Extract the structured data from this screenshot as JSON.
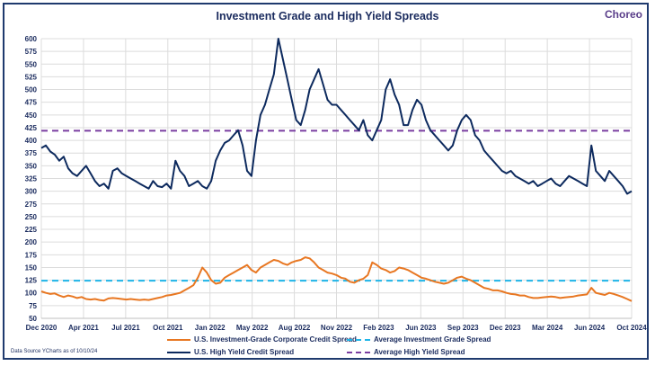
{
  "title": "Investment Grade and High Yield Spreads",
  "logo": "Choreo",
  "source": "Data Source YCharts as of 10/10/24",
  "colors": {
    "ig": "#e87722",
    "hy": "#0d2a5e",
    "ig_avg": "#1fb5e8",
    "hy_avg": "#7a3ea1",
    "grid": "#dcdcdc",
    "text": "#1a2b5e"
  },
  "legend": {
    "ig": "U.S. Investment-Grade Corporate Credit Spread",
    "hy": "U.S. High Yield Credit Spread",
    "ig_avg": "Average Investment Grade Spread",
    "hy_avg": "Average High Yield Spread"
  },
  "chart_data": {
    "type": "line",
    "title": "Investment Grade and High Yield Spreads",
    "xlabel": "",
    "ylabel": "",
    "ylim": [
      50,
      600
    ],
    "yticks": [
      "50",
      "75",
      "100",
      "125",
      "150",
      "175",
      "200",
      "225",
      "250",
      "275",
      "300",
      "325",
      "350",
      "375",
      "400",
      "425",
      "450",
      "475",
      "500",
      "525",
      "550",
      "575",
      "600"
    ],
    "xticks": [
      "Dec 2020",
      "Apr 2021",
      "Jul 2021",
      "Oct 2021",
      "Jan 2022",
      "May 2022",
      "Aug 2022",
      "Nov 2022",
      "Feb 2023",
      "Jun 2023",
      "Sep 2023",
      "Dec 2023",
      "Mar 2024",
      "Jun 2024",
      "Oct 2024"
    ],
    "grid": true,
    "legend_position": "bottom",
    "series": [
      {
        "name": "U.S. High Yield Credit Spread",
        "values": [
          385,
          390,
          378,
          372,
          360,
          368,
          345,
          335,
          330,
          340,
          350,
          335,
          320,
          310,
          315,
          305,
          340,
          345,
          335,
          330,
          325,
          320,
          315,
          310,
          305,
          320,
          310,
          308,
          315,
          305,
          360,
          340,
          330,
          310,
          315,
          320,
          310,
          305,
          320,
          360,
          380,
          395,
          400,
          410,
          420,
          390,
          340,
          330,
          400,
          450,
          470,
          500,
          530,
          600,
          560,
          520,
          480,
          440,
          430,
          460,
          500,
          520,
          540,
          510,
          480,
          470,
          470,
          460,
          450,
          440,
          430,
          420,
          440,
          410,
          400,
          420,
          440,
          500,
          520,
          490,
          470,
          430,
          430,
          460,
          480,
          470,
          440,
          420,
          410,
          400,
          390,
          380,
          390,
          420,
          440,
          450,
          440,
          410,
          400,
          380,
          370,
          360,
          350,
          340,
          335,
          340,
          330,
          325,
          320,
          315,
          320,
          310,
          315,
          320,
          325,
          315,
          310,
          320,
          330,
          325,
          320,
          315,
          310,
          390,
          340,
          330,
          320,
          340,
          330,
          320,
          310,
          295,
          300
        ]
      },
      {
        "name": "U.S. Investment-Grade Corporate Credit Spread",
        "values": [
          103,
          100,
          98,
          99,
          95,
          92,
          95,
          93,
          90,
          92,
          88,
          87,
          88,
          86,
          85,
          89,
          90,
          89,
          88,
          87,
          88,
          87,
          86,
          87,
          86,
          88,
          90,
          92,
          95,
          96,
          98,
          100,
          105,
          110,
          115,
          130,
          150,
          140,
          125,
          118,
          120,
          130,
          135,
          140,
          145,
          150,
          155,
          145,
          140,
          150,
          155,
          160,
          165,
          163,
          158,
          155,
          160,
          163,
          165,
          170,
          168,
          160,
          150,
          145,
          140,
          138,
          135,
          130,
          128,
          122,
          120,
          125,
          128,
          135,
          160,
          155,
          148,
          145,
          140,
          143,
          150,
          148,
          145,
          140,
          135,
          130,
          128,
          125,
          122,
          120,
          118,
          120,
          125,
          130,
          132,
          128,
          125,
          120,
          115,
          110,
          108,
          105,
          105,
          103,
          100,
          98,
          97,
          95,
          95,
          92,
          90,
          90,
          91,
          92,
          93,
          92,
          90,
          91,
          92,
          93,
          95,
          96,
          97,
          110,
          100,
          98,
          96,
          100,
          98,
          95,
          92,
          88,
          84
        ]
      },
      {
        "name": "Average Investment Grade Spread",
        "value": 124
      },
      {
        "name": "Average High Yield Spread",
        "value": 419
      }
    ]
  }
}
